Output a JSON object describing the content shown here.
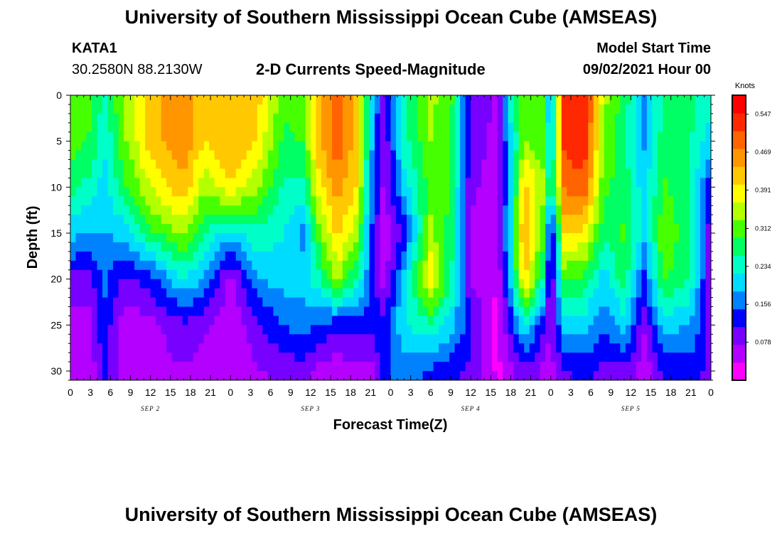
{
  "header": {
    "title": "University of Southern Mississippi Ocean Cube (AMSEAS)",
    "station": "KATA1",
    "coords": "30.2580N  88.2130W",
    "subtitle": "2-D Currents Speed-Magnitude",
    "model_start_label": "Model Start Time",
    "model_start_value": "09/02/2021 Hour 00"
  },
  "footer": {
    "title": "University of Southern Mississippi Ocean Cube (AMSEAS)"
  },
  "chart_data": {
    "type": "heatmap",
    "title": "2-D Currents Speed-Magnitude",
    "xlabel": "Forecast Time(Z)",
    "ylabel": "Depth (ft)",
    "x_tick_labels": [
      "0",
      "3",
      "6",
      "9",
      "12",
      "15",
      "18",
      "21",
      "0",
      "3",
      "6",
      "9",
      "12",
      "15",
      "18",
      "21",
      "0",
      "3",
      "6",
      "9",
      "12",
      "15",
      "18",
      "21",
      "0",
      "3",
      "6",
      "9",
      "12",
      "15",
      "18",
      "21",
      "0"
    ],
    "x_hours": [
      0,
      3,
      6,
      9,
      12,
      15,
      18,
      21,
      24,
      27,
      30,
      33,
      36,
      39,
      42,
      45,
      48,
      51,
      54,
      57,
      60,
      63,
      66,
      69,
      72,
      75,
      78,
      81,
      84,
      87,
      90,
      93,
      96
    ],
    "day_labels": [
      {
        "label": "SEP 2",
        "hour": 12
      },
      {
        "label": "SEP 3",
        "hour": 36
      },
      {
        "label": "SEP 4",
        "hour": 60
      },
      {
        "label": "SEP 5",
        "hour": 84
      }
    ],
    "y_ticks": [
      0,
      5,
      10,
      15,
      20,
      25,
      30
    ],
    "xlim": [
      0,
      96
    ],
    "ylim": [
      0,
      31
    ],
    "y_inverted": true,
    "colorbar": {
      "unit": "Knots",
      "ticks": [
        0.547,
        0.469,
        0.391,
        0.312,
        0.234,
        0.156,
        0.078
      ],
      "range": [
        0.0,
        0.586
      ],
      "colors": [
        "#ff00ff",
        "#b400ff",
        "#7800ff",
        "#0000ff",
        "#0082ff",
        "#00dcff",
        "#00ffc8",
        "#00ff64",
        "#46ff00",
        "#b4ff00",
        "#ffff00",
        "#ffc800",
        "#ff9600",
        "#ff6400",
        "#ff2800",
        "#ff0000"
      ]
    },
    "depths": [
      0,
      5,
      10,
      15,
      20,
      25,
      30
    ],
    "z_knots_by_hour": [
      {
        "hour": 0,
        "values": [
          0.33,
          0.31,
          0.27,
          0.2,
          0.1,
          0.05,
          0.04
        ]
      },
      {
        "hour": 3,
        "values": [
          0.3,
          0.29,
          0.24,
          0.18,
          0.1,
          0.06,
          0.05
        ]
      },
      {
        "hour": 5,
        "values": [
          0.25,
          0.22,
          0.2,
          0.18,
          0.16,
          0.14,
          0.12
        ]
      },
      {
        "hour": 8,
        "values": [
          0.34,
          0.32,
          0.28,
          0.2,
          0.1,
          0.05,
          0.05
        ]
      },
      {
        "hour": 12,
        "values": [
          0.42,
          0.42,
          0.37,
          0.28,
          0.13,
          0.06,
          0.06
        ]
      },
      {
        "hour": 17,
        "values": [
          0.47,
          0.47,
          0.43,
          0.34,
          0.22,
          0.1,
          0.07
        ]
      },
      {
        "hour": 20,
        "values": [
          0.42,
          0.4,
          0.34,
          0.26,
          0.18,
          0.08,
          0.06
        ]
      },
      {
        "hour": 24,
        "values": [
          0.44,
          0.44,
          0.4,
          0.2,
          0.06,
          0.04,
          0.04
        ]
      },
      {
        "hour": 28,
        "values": [
          0.42,
          0.4,
          0.34,
          0.25,
          0.18,
          0.1,
          0.07
        ]
      },
      {
        "hour": 32,
        "values": [
          0.3,
          0.28,
          0.25,
          0.22,
          0.2,
          0.15,
          0.08
        ]
      },
      {
        "hour": 35,
        "values": [
          0.33,
          0.3,
          0.24,
          0.17,
          0.2,
          0.16,
          0.1
        ]
      },
      {
        "hour": 37,
        "values": [
          0.42,
          0.42,
          0.38,
          0.3,
          0.24,
          0.15,
          0.06
        ]
      },
      {
        "hour": 40,
        "values": [
          0.5,
          0.5,
          0.46,
          0.42,
          0.34,
          0.12,
          0.05
        ]
      },
      {
        "hour": 43,
        "values": [
          0.42,
          0.42,
          0.4,
          0.34,
          0.25,
          0.12,
          0.06
        ]
      },
      {
        "hour": 45,
        "values": [
          0.2,
          0.2,
          0.18,
          0.15,
          0.15,
          0.12,
          0.06
        ]
      },
      {
        "hour": 47,
        "values": [
          0.1,
          0.08,
          0.06,
          0.05,
          0.05,
          0.12,
          0.14
        ]
      },
      {
        "hour": 50,
        "values": [
          0.25,
          0.24,
          0.2,
          0.12,
          0.2,
          0.22,
          0.16
        ]
      },
      {
        "hour": 54,
        "values": [
          0.34,
          0.33,
          0.31,
          0.34,
          0.4,
          0.25,
          0.14
        ]
      },
      {
        "hour": 57,
        "values": [
          0.31,
          0.3,
          0.29,
          0.28,
          0.26,
          0.2,
          0.12
        ]
      },
      {
        "hour": 60,
        "values": [
          0.1,
          0.09,
          0.08,
          0.07,
          0.07,
          0.12,
          0.1
        ]
      },
      {
        "hour": 64,
        "values": [
          0.07,
          0.06,
          0.06,
          0.05,
          0.04,
          0.02,
          0.03
        ]
      },
      {
        "hour": 66,
        "values": [
          0.24,
          0.2,
          0.2,
          0.22,
          0.2,
          0.12,
          0.06
        ]
      },
      {
        "hour": 68,
        "values": [
          0.32,
          0.33,
          0.42,
          0.46,
          0.42,
          0.22,
          0.1
        ]
      },
      {
        "hour": 71,
        "values": [
          0.3,
          0.3,
          0.34,
          0.3,
          0.24,
          0.12,
          0.06
        ]
      },
      {
        "hour": 72,
        "values": [
          0.15,
          0.18,
          0.22,
          0.08,
          0.06,
          0.06,
          0.06
        ]
      },
      {
        "hour": 74,
        "values": [
          0.52,
          0.52,
          0.48,
          0.4,
          0.3,
          0.2,
          0.1
        ]
      },
      {
        "hour": 77,
        "values": [
          0.55,
          0.55,
          0.5,
          0.4,
          0.28,
          0.2,
          0.12
        ]
      },
      {
        "hour": 80,
        "values": [
          0.34,
          0.32,
          0.3,
          0.26,
          0.2,
          0.15,
          0.1
        ]
      },
      {
        "hour": 83,
        "values": [
          0.28,
          0.26,
          0.28,
          0.3,
          0.28,
          0.2,
          0.1
        ]
      },
      {
        "hour": 86,
        "values": [
          0.18,
          0.18,
          0.2,
          0.2,
          0.14,
          0.08,
          0.05
        ]
      },
      {
        "hour": 89,
        "values": [
          0.26,
          0.28,
          0.3,
          0.33,
          0.3,
          0.2,
          0.12
        ]
      },
      {
        "hour": 93,
        "values": [
          0.26,
          0.26,
          0.25,
          0.26,
          0.25,
          0.18,
          0.12
        ]
      },
      {
        "hour": 96,
        "values": [
          0.24,
          0.2,
          0.12,
          0.08,
          0.08,
          0.1,
          0.1
        ]
      }
    ]
  }
}
